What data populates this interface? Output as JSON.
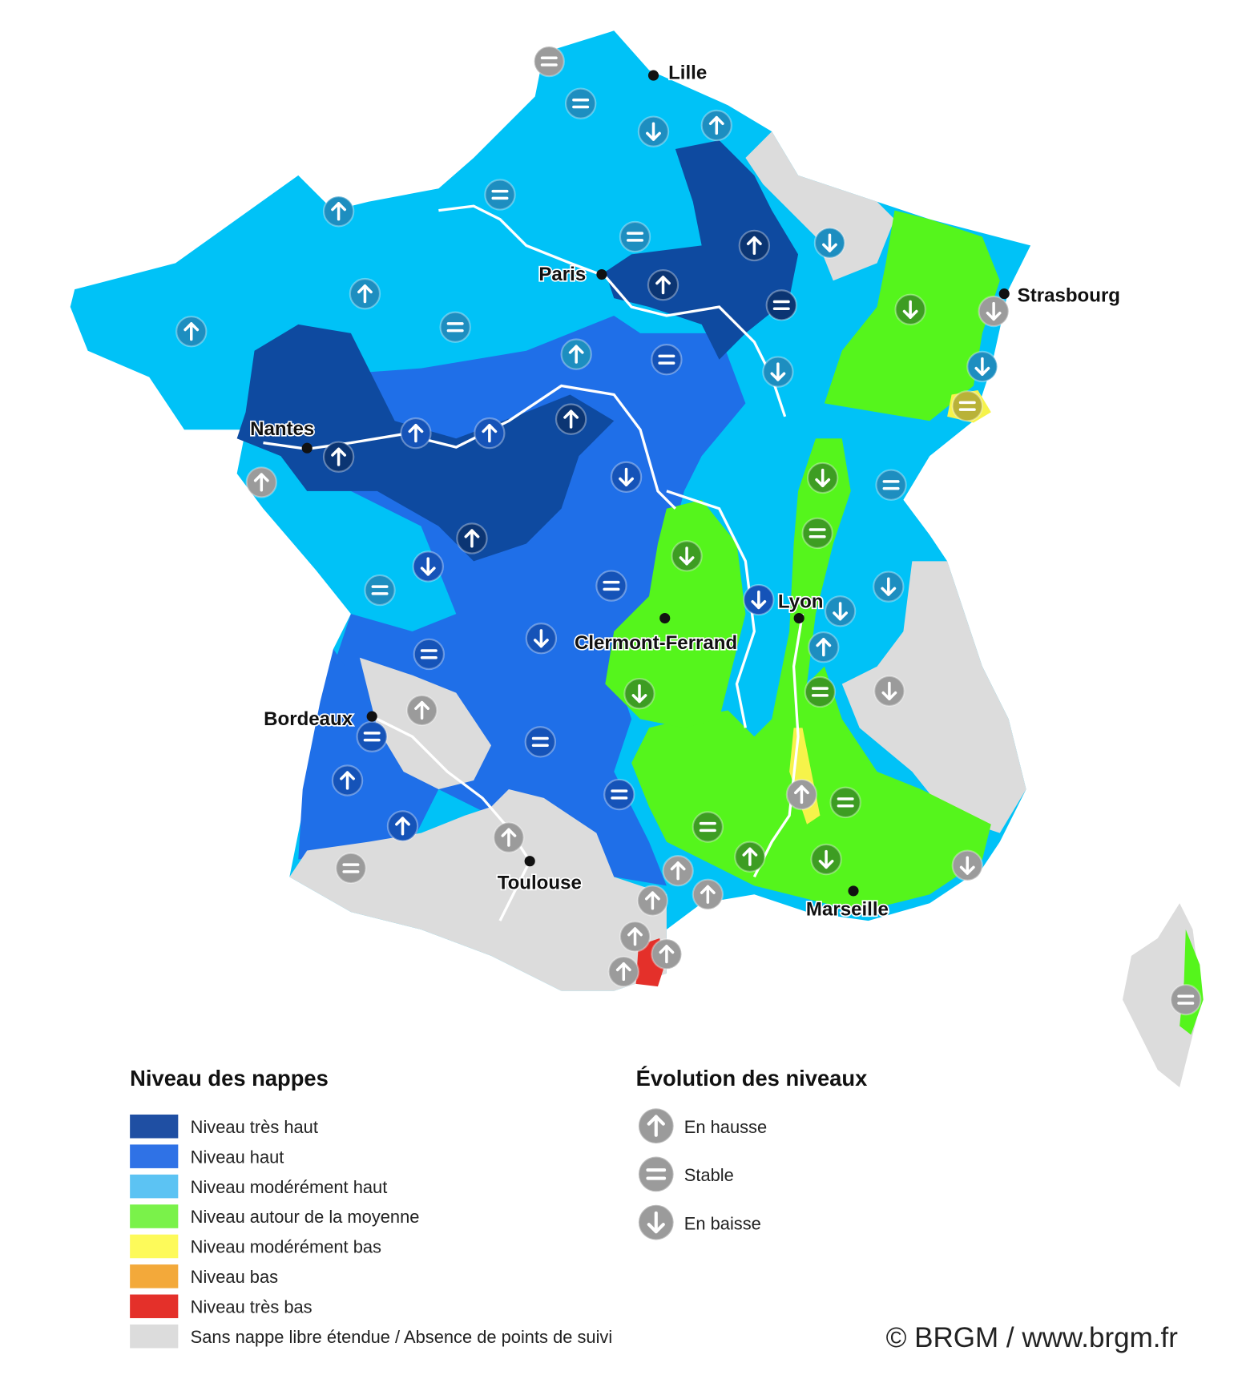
{
  "cities": [
    {
      "label": "Lille"
    },
    {
      "label": "Paris"
    },
    {
      "label": "Strasbourg"
    },
    {
      "label": "Nantes"
    },
    {
      "label": "Clermont-Ferrand"
    },
    {
      "label": "Lyon"
    },
    {
      "label": "Bordeaux"
    },
    {
      "label": "Toulouse"
    },
    {
      "label": "Marseille"
    }
  ],
  "legend_levels": {
    "title": "Niveau des nappes",
    "items": [
      {
        "label": "Niveau très haut",
        "color": "#1f4fa3"
      },
      {
        "label": "Niveau haut",
        "color": "#2f72e6"
      },
      {
        "label": "Niveau modérément haut",
        "color": "#5cc3f3"
      },
      {
        "label": "Niveau autour de la moyenne",
        "color": "#7af24a"
      },
      {
        "label": "Niveau modérément bas",
        "color": "#fdfa5a"
      },
      {
        "label": "Niveau bas",
        "color": "#f3a93a"
      },
      {
        "label": "Niveau très bas",
        "color": "#e4302a"
      },
      {
        "label": "Sans nappe libre étendue / Absence de points de suivi",
        "color": "#dcdcdc"
      }
    ]
  },
  "legend_trends": {
    "title": "Évolution des niveaux",
    "items": [
      {
        "label": "En hausse"
      },
      {
        "label": "Stable"
      },
      {
        "label": "En baisse"
      }
    ]
  },
  "credit": "© BRGM / www.brgm.fr"
}
